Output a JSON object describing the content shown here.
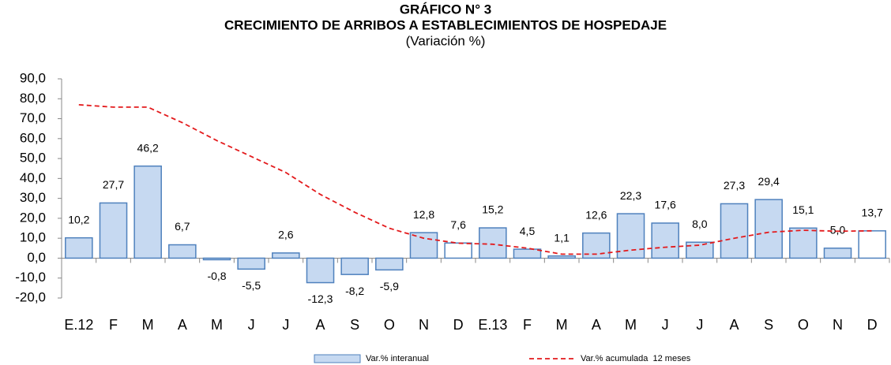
{
  "chart_data": {
    "type": "bar",
    "title": "GRÁFICO N° 3",
    "subtitle": "CRECIMIENTO DE ARRIBOS A ESTABLECIMIENTOS DE HOSPEDAJE",
    "unit_note": "(Variación %)",
    "categories": [
      "E.12",
      "F",
      "M",
      "A",
      "M",
      "J",
      "J",
      "A",
      "S",
      "O",
      "N",
      "D",
      "E.13",
      "F",
      "M",
      "A",
      "M",
      "J",
      "J",
      "A",
      "S",
      "O",
      "N",
      "D"
    ],
    "series": [
      {
        "name": "Var.% interanual",
        "type": "bar",
        "color": "#c6d9f1",
        "edge_color": "#4f81bd",
        "colors": [
          "#c6d9f1",
          "#c6d9f1",
          "#c6d9f1",
          "#c6d9f1",
          "#c6d9f1",
          "#c6d9f1",
          "#c6d9f1",
          "#c6d9f1",
          "#c6d9f1",
          "#c6d9f1",
          "#c6d9f1",
          "#ffffff",
          "#c6d9f1",
          "#c6d9f1",
          "#c6d9f1",
          "#c6d9f1",
          "#c6d9f1",
          "#c6d9f1",
          "#c6d9f1",
          "#c6d9f1",
          "#c6d9f1",
          "#c6d9f1",
          "#c6d9f1",
          "#ffffff"
        ],
        "values": [
          10.2,
          27.7,
          46.2,
          6.7,
          -0.8,
          -5.5,
          2.6,
          -12.3,
          -8.2,
          -5.9,
          12.8,
          7.6,
          15.2,
          4.5,
          1.1,
          12.6,
          22.3,
          17.6,
          8.0,
          27.3,
          29.4,
          15.1,
          5.0,
          13.7
        ],
        "value_labels": [
          "10,2",
          "27,7",
          "46,2",
          "6,7",
          "-0,8",
          "-5,5",
          "2,6",
          "-12,3",
          "-8,2",
          "-5,9",
          "12,8",
          "7,6",
          "15,2",
          "4,5",
          "1,1",
          "12,6",
          "22,3",
          "17,6",
          "8,0",
          "27,3",
          "29,4",
          "15,1",
          "5,0",
          "13,7"
        ]
      },
      {
        "name": "Var.% acumulada  12 meses",
        "type": "line",
        "color": "#e31a1c",
        "dashed": true,
        "values": [
          77,
          75.8,
          75.8,
          68,
          59,
          51,
          43,
          32,
          23,
          15,
          10,
          7.5,
          7,
          5,
          2,
          2,
          4,
          5.5,
          6.5,
          10,
          13,
          14,
          13.5,
          13.7
        ]
      }
    ],
    "ylim": [
      -20,
      90
    ],
    "yticks": [
      {
        "value": -20,
        "label": "-20,0"
      },
      {
        "value": -10,
        "label": "-10,0"
      },
      {
        "value": 0,
        "label": "0,0"
      },
      {
        "value": 10,
        "label": "10,0"
      },
      {
        "value": 20,
        "label": "20,0"
      },
      {
        "value": 30,
        "label": "30,0"
      },
      {
        "value": 40,
        "label": "40,0"
      },
      {
        "value": 50,
        "label": "50,0"
      },
      {
        "value": 60,
        "label": "60,0"
      },
      {
        "value": 70,
        "label": "70,0"
      },
      {
        "value": 80,
        "label": "80,0"
      },
      {
        "value": 90,
        "label": "90,0"
      }
    ],
    "grid": false
  }
}
